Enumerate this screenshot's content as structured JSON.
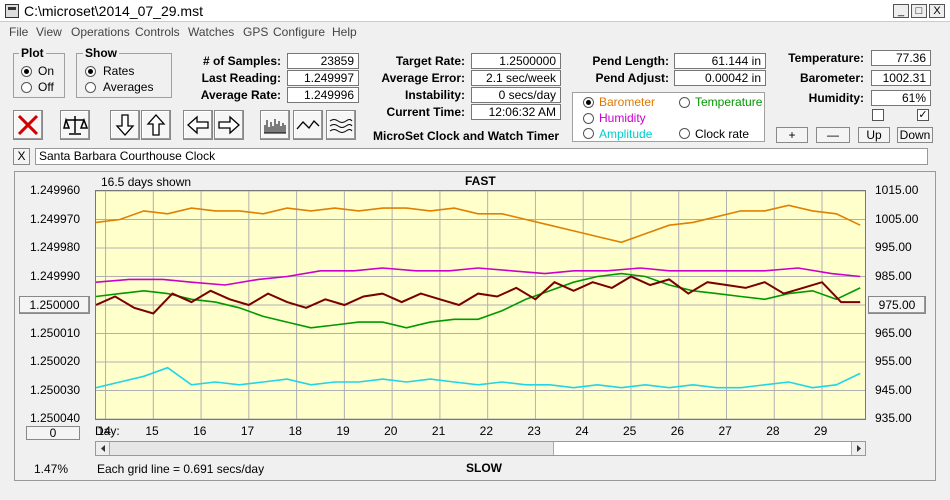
{
  "window": {
    "title": "C:\\microset\\2014_07_29.mst",
    "minimize": "_",
    "maximize": "□",
    "close": "X"
  },
  "menu": [
    "File",
    "View",
    "Operations",
    "Controls",
    "Watches",
    "GPS",
    "Configure",
    "Help"
  ],
  "plot_group": {
    "label": "Plot",
    "options": [
      "On",
      "Off"
    ],
    "selected": "On"
  },
  "show_group": {
    "label": "Show",
    "options": [
      "Rates",
      "Averages"
    ],
    "selected": "Rates"
  },
  "stats": {
    "samples_label": "# of Samples:",
    "samples": "23859",
    "last_reading_label": "Last Reading:",
    "last_reading": "1.249997",
    "average_rate_label": "Average Rate:",
    "average_rate": "1.249996",
    "target_rate_label": "Target Rate:",
    "target_rate": "1.2500000",
    "average_error_label": "Average Error:",
    "average_error": "2.1 sec/week",
    "instability_label": "Instability:",
    "instability": "0 secs/day",
    "current_time_label": "Current Time:",
    "current_time": "12:06:32 AM",
    "pend_length_label": "Pend Length:",
    "pend_length": "61.144 in",
    "pend_adjust_label": "Pend Adjust:",
    "pend_adjust": "0.00042 in",
    "temperature_label": "Temperature:",
    "temperature": "77.36",
    "barometer_label": "Barometer:",
    "barometer": "1002.31",
    "humidity_label": "Humidity:",
    "humidity": "61%"
  },
  "app_caption": "MicroSet Clock and Watch Timer",
  "series_select": {
    "options": [
      {
        "label": "Barometer",
        "color": "#e07800",
        "selected": true
      },
      {
        "label": "Temperature",
        "color": "#009900",
        "selected": false
      },
      {
        "label": "Humidity",
        "color": "#cc00cc",
        "selected": false
      },
      {
        "label": "Clock rate",
        "color": "#000000",
        "selected": false
      },
      {
        "label": "Amplitude",
        "color": "#00cccc",
        "selected": false
      }
    ]
  },
  "axis_buttons": {
    "plus": "+",
    "minus": "—",
    "up": "Up",
    "down": "Down"
  },
  "clock_name": "Santa Barbara Courthouse Clock",
  "clear_button": "X",
  "graph": {
    "days_shown": "16.5 days shown",
    "fast_label": "FAST",
    "slow_label": "SLOW",
    "grid_note": "Each grid line = 0.691 secs/day",
    "percent": "1.47%",
    "center_left": "1.250000",
    "center_right": "975.00",
    "bottom_left_box": "0",
    "day_prefix": "Day:"
  },
  "chart_data": {
    "type": "line",
    "y_left_ticks": [
      "1.249960",
      "1.249970",
      "1.249980",
      "1.249990",
      "1.250000",
      "1.250010",
      "1.250020",
      "1.250030",
      "1.250040"
    ],
    "y_right_ticks": [
      "1015.00",
      "1005.00",
      "995.00",
      "985.00",
      "975.00",
      "965.00",
      "955.00",
      "945.00",
      "935.00"
    ],
    "ylim_left": [
      1.25004,
      1.24996
    ],
    "ylim_right": [
      935,
      1015
    ],
    "days": [
      "14",
      "15",
      "16",
      "17",
      "18",
      "19",
      "20",
      "21",
      "22",
      "23",
      "24",
      "25",
      "26",
      "27",
      "28",
      "29"
    ],
    "xlim": [
      13.8,
      29.9
    ],
    "grid": true,
    "series": [
      {
        "color": "#e08000",
        "x": [
          13.8,
          14.3,
          14.8,
          15.3,
          15.8,
          16.3,
          16.8,
          17.3,
          17.8,
          18.3,
          18.8,
          19.3,
          19.8,
          20.3,
          20.8,
          21.3,
          21.8,
          22.3,
          22.8,
          23.3,
          23.8,
          24.3,
          24.8,
          25.3,
          25.8,
          26.3,
          26.8,
          27.3,
          27.8,
          28.3,
          28.8,
          29.3,
          29.8
        ],
        "y": [
          1004,
          1005,
          1008,
          1007,
          1009,
          1008,
          1008,
          1007,
          1009,
          1008,
          1009,
          1008,
          1009,
          1009,
          1008,
          1009,
          1007,
          1007,
          1005,
          1003,
          1001,
          999,
          997,
          1000,
          1003,
          1004,
          1006,
          1008,
          1008,
          1010,
          1008,
          1007,
          1003
        ]
      },
      {
        "color": "#cc00cc",
        "x": [
          13.8,
          14.5,
          15.2,
          15.8,
          16.5,
          17.2,
          17.8,
          18.5,
          19.2,
          19.8,
          20.5,
          21.2,
          21.8,
          22.5,
          23.2,
          23.8,
          24.5,
          25.2,
          25.8,
          26.5,
          27.2,
          27.8,
          28.5,
          29.2,
          29.8
        ],
        "y": [
          983,
          984,
          984,
          983,
          982,
          984,
          985,
          987,
          987,
          988,
          987,
          987,
          988,
          987,
          986,
          987,
          987,
          988,
          987,
          987,
          987,
          987,
          988,
          986,
          985
        ]
      },
      {
        "color": "#009900",
        "x": [
          13.8,
          14.3,
          14.8,
          15.3,
          15.8,
          16.3,
          16.8,
          17.3,
          17.8,
          18.3,
          18.8,
          19.3,
          19.8,
          20.3,
          20.8,
          21.3,
          21.8,
          22.3,
          22.8,
          23.3,
          23.8,
          24.3,
          24.8,
          25.3,
          25.8,
          26.3,
          26.8,
          27.3,
          27.8,
          28.3,
          28.8,
          29.3,
          29.8
        ],
        "y": [
          978,
          979,
          980,
          979,
          977,
          976,
          974,
          971,
          969,
          967,
          968,
          969,
          969,
          967,
          969,
          970,
          970,
          973,
          977,
          980,
          983,
          985,
          986,
          985,
          982,
          980,
          979,
          978,
          977,
          979,
          980,
          977,
          981
        ]
      },
      {
        "color": "#7a0000",
        "x": [
          13.8,
          14.2,
          14.6,
          15.0,
          15.4,
          15.8,
          16.2,
          16.6,
          17.0,
          17.4,
          17.8,
          18.2,
          18.6,
          19.0,
          19.4,
          19.8,
          20.2,
          20.6,
          21.0,
          21.4,
          21.8,
          22.2,
          22.6,
          23.0,
          23.4,
          23.8,
          24.2,
          24.6,
          25.0,
          25.4,
          25.8,
          26.2,
          26.6,
          27.0,
          27.4,
          27.8,
          28.2,
          28.6,
          29.0,
          29.4,
          29.8
        ],
        "y": [
          975,
          978,
          974,
          972,
          979,
          976,
          980,
          977,
          975,
          979,
          976,
          974,
          977,
          975,
          978,
          979,
          976,
          979,
          977,
          975,
          979,
          978,
          981,
          977,
          983,
          980,
          983,
          981,
          985,
          982,
          984,
          979,
          983,
          982,
          981,
          983,
          979,
          981,
          983,
          976,
          976
        ]
      },
      {
        "color": "#22d4e8",
        "x": [
          13.8,
          14.3,
          14.8,
          15.3,
          15.8,
          16.3,
          16.8,
          17.3,
          17.8,
          18.3,
          18.8,
          19.3,
          19.8,
          20.3,
          20.8,
          21.3,
          21.8,
          22.3,
          22.8,
          23.3,
          23.8,
          24.3,
          24.8,
          25.3,
          25.8,
          26.3,
          26.8,
          27.3,
          27.8,
          28.3,
          28.8,
          29.3,
          29.8
        ],
        "y": [
          946,
          948,
          950,
          953,
          947,
          948,
          947,
          948,
          949,
          947,
          948,
          948,
          949,
          948,
          949,
          948,
          947,
          948,
          947,
          947,
          946,
          947,
          946,
          947,
          946,
          947,
          946,
          946,
          947,
          948,
          946,
          947,
          951
        ]
      }
    ]
  }
}
